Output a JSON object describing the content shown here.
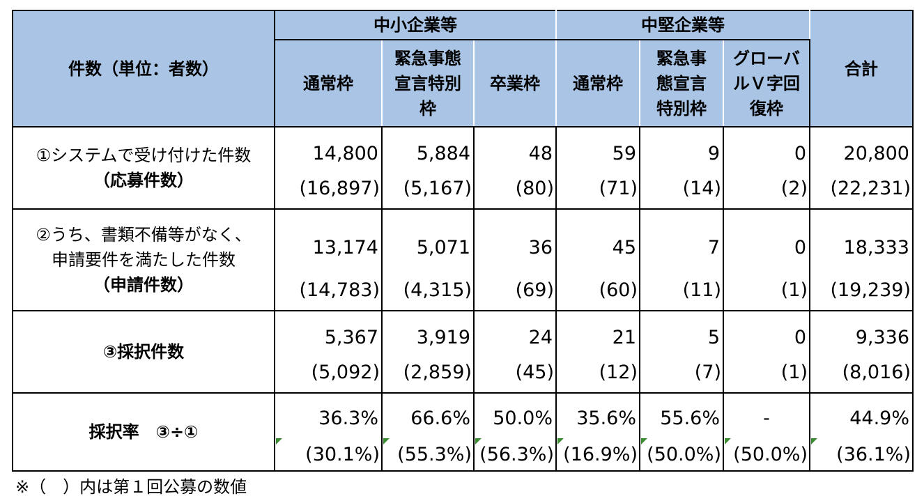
{
  "header": {
    "corner": "件数（単位：者数）",
    "group_sme": "中小企業等",
    "group_mid": "中堅企業等",
    "total": "合計",
    "columns": [
      "通常枠",
      "緊急事態宣言特別枠",
      "卒業枠",
      "通常枠",
      "緊急事態宣言特別枠",
      "グローバルＶ字回復枠"
    ]
  },
  "rows": [
    {
      "label_line1": "①システムで受け付けた件数",
      "label_line2": "",
      "label_bold": "（応募件数）",
      "current": [
        "14,800",
        "5,884",
        "48",
        "59",
        "9",
        "0",
        "20,800"
      ],
      "previous": [
        "(16,897)",
        "(5,167)",
        "(80)",
        "(71)",
        "(14)",
        "(2)",
        "(22,231)"
      ]
    },
    {
      "label_line1": "②うち、書類不備等がなく、",
      "label_line2": "申請要件を満たした件数",
      "label_bold": "（申請件数）",
      "current": [
        "13,174",
        "5,071",
        "36",
        "45",
        "7",
        "0",
        "18,333"
      ],
      "previous": [
        "(14,783)",
        "(4,315)",
        "(69)",
        "(60)",
        "(11)",
        "(1)",
        "(19,239)"
      ]
    },
    {
      "label_line1": "",
      "label_line2": "",
      "label_bold": "③採択件数",
      "current": [
        "5,367",
        "3,919",
        "24",
        "21",
        "5",
        "0",
        "9,336"
      ],
      "previous": [
        "(5,092)",
        "(2,859)",
        "(45)",
        "(12)",
        "(7)",
        "(1)",
        "(8,016)"
      ]
    },
    {
      "label_line1": "",
      "label_line2": "",
      "label_bold": "採択率　③÷①",
      "current": [
        "36.3%",
        "66.6%",
        "50.0%",
        "35.6%",
        "55.6%",
        "-",
        "44.9%"
      ],
      "previous": [
        "(30.1%)",
        "(55.3%)",
        "(56.3%)",
        "(16.9%)",
        "(50.0%)",
        "(50.0%)",
        "(36.1%)"
      ]
    }
  ],
  "footnote": "※（　）内は第１回公募の数値",
  "colors": {
    "header_bg": "#a9c4e4",
    "flag": "#3c8c34"
  }
}
